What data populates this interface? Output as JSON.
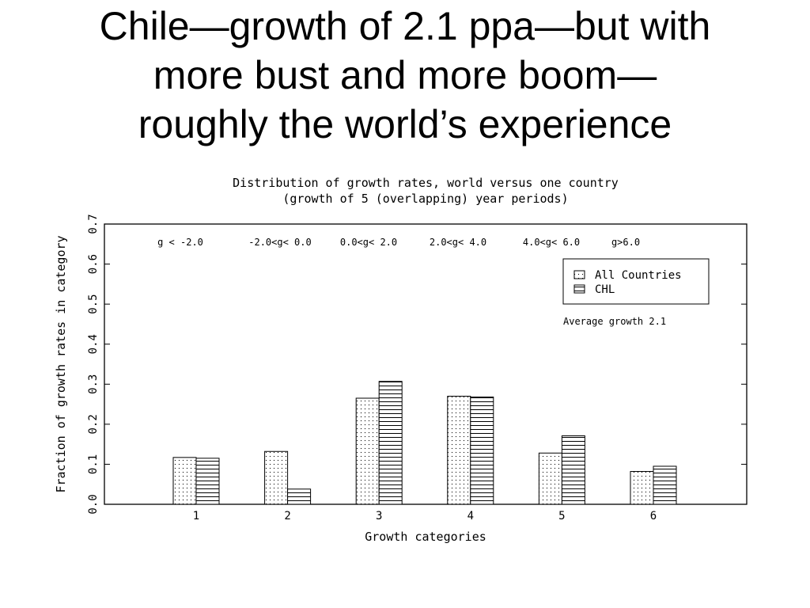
{
  "slide": {
    "title_lines": [
      "Chile—growth of 2.1 ppa—but with",
      "more bust and more boom—",
      "roughly the world’s experience"
    ]
  },
  "chart_data": {
    "type": "bar",
    "title": "Distribution of growth rates, world versus one country",
    "subtitle": "(growth of 5 (overlapping) year periods)",
    "xlabel": "Growth categories",
    "ylabel": "Fraction of growth rates in category",
    "categories": [
      "1",
      "2",
      "3",
      "4",
      "5",
      "6"
    ],
    "category_ranges": [
      "g < -2.0",
      "-2.0<g< 0.0",
      "0.0<g< 2.0",
      "2.0<g< 4.0",
      "4.0<g< 6.0",
      "g>6.0"
    ],
    "series": [
      {
        "name": "All Countries",
        "pattern": "dots",
        "values": [
          0.117,
          0.132,
          0.265,
          0.27,
          0.128,
          0.082
        ]
      },
      {
        "name": "CHL",
        "pattern": "horizontal-lines",
        "values": [
          0.115,
          0.038,
          0.307,
          0.268,
          0.171,
          0.095
        ]
      }
    ],
    "ylim": [
      0,
      0.7
    ],
    "yticks": [
      "0.0",
      "0.1",
      "0.2",
      "0.3",
      "0.4",
      "0.5",
      "0.6",
      "0.7"
    ],
    "annotation": "Average growth 2.1",
    "legend_position": "top-right",
    "grid": false
  }
}
